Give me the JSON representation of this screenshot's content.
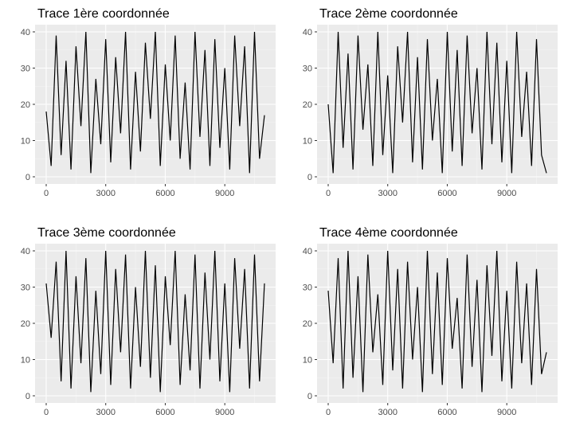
{
  "figure": {
    "background": "#ffffff",
    "panel_background": "#ebebeb",
    "grid_major_color": "#ffffff",
    "grid_minor_color": "#f5f5f5",
    "line_color": "#000000",
    "tick_color": "#333333",
    "tick_label_color": "#4d4d4d"
  },
  "chart_data": [
    {
      "type": "line",
      "title": "Trace 1ère coordonnée",
      "xlabel": "",
      "ylabel": "",
      "xlim": [
        0,
        11000
      ],
      "ylim": [
        0,
        40
      ],
      "x_ticks": [
        "0",
        "3000",
        "6000",
        "9000"
      ],
      "y_ticks": [
        "0",
        "10",
        "20",
        "30",
        "40"
      ],
      "grid": true,
      "series": [
        {
          "x": [
            0,
            250,
            500,
            750,
            1000,
            1250,
            1500,
            1750,
            2000,
            2250,
            2500,
            2750,
            3000,
            3250,
            3500,
            3750,
            4000,
            4250,
            4500,
            4750,
            5000,
            5250,
            5500,
            5750,
            6000,
            6250,
            6500,
            6750,
            7000,
            7250,
            7500,
            7750,
            8000,
            8250,
            8500,
            8750,
            9000,
            9250,
            9500,
            9750,
            10000,
            10250,
            10500,
            10750,
            11000
          ],
          "y": [
            18,
            3,
            39,
            6,
            32,
            2,
            36,
            14,
            40,
            1,
            27,
            9,
            38,
            4,
            33,
            12,
            40,
            2,
            29,
            7,
            37,
            16,
            40,
            3,
            31,
            10,
            39,
            5,
            26,
            2,
            40,
            11,
            35,
            3,
            38,
            8,
            30,
            2,
            39,
            14,
            36,
            1,
            40,
            5,
            17
          ]
        }
      ]
    },
    {
      "type": "line",
      "title": "Trace 2ème coordonnée",
      "xlabel": "",
      "ylabel": "",
      "xlim": [
        0,
        11000
      ],
      "ylim": [
        0,
        40
      ],
      "x_ticks": [
        "0",
        "3000",
        "6000",
        "9000"
      ],
      "y_ticks": [
        "0",
        "10",
        "20",
        "30",
        "40"
      ],
      "grid": true,
      "series": [
        {
          "x": [
            0,
            250,
            500,
            750,
            1000,
            1250,
            1500,
            1750,
            2000,
            2250,
            2500,
            2750,
            3000,
            3250,
            3500,
            3750,
            4000,
            4250,
            4500,
            4750,
            5000,
            5250,
            5500,
            5750,
            6000,
            6250,
            6500,
            6750,
            7000,
            7250,
            7500,
            7750,
            8000,
            8250,
            8500,
            8750,
            9000,
            9250,
            9500,
            9750,
            10000,
            10250,
            10500,
            10750,
            11000
          ],
          "y": [
            20,
            1,
            40,
            8,
            34,
            2,
            39,
            13,
            31,
            3,
            40,
            6,
            28,
            1,
            36,
            15,
            40,
            4,
            33,
            2,
            38,
            10,
            27,
            1,
            40,
            7,
            35,
            3,
            39,
            12,
            30,
            2,
            40,
            9,
            37,
            4,
            32,
            1,
            40,
            11,
            29,
            3,
            38,
            6,
            1
          ]
        }
      ]
    },
    {
      "type": "line",
      "title": "Trace 3ème coordonnée",
      "xlabel": "",
      "ylabel": "",
      "xlim": [
        0,
        11000
      ],
      "ylim": [
        0,
        40
      ],
      "x_ticks": [
        "0",
        "3000",
        "6000",
        "9000"
      ],
      "y_ticks": [
        "0",
        "10",
        "20",
        "30",
        "40"
      ],
      "grid": true,
      "series": [
        {
          "x": [
            0,
            250,
            500,
            750,
            1000,
            1250,
            1500,
            1750,
            2000,
            2250,
            2500,
            2750,
            3000,
            3250,
            3500,
            3750,
            4000,
            4250,
            4500,
            4750,
            5000,
            5250,
            5500,
            5750,
            6000,
            6250,
            6500,
            6750,
            7000,
            7250,
            7500,
            7750,
            8000,
            8250,
            8500,
            8750,
            9000,
            9250,
            9500,
            9750,
            10000,
            10250,
            10500,
            10750,
            11000
          ],
          "y": [
            31,
            16,
            37,
            4,
            40,
            2,
            33,
            9,
            38,
            1,
            29,
            6,
            40,
            3,
            35,
            12,
            39,
            2,
            30,
            8,
            40,
            5,
            36,
            1,
            33,
            14,
            40,
            3,
            28,
            7,
            39,
            2,
            34,
            10,
            40,
            4,
            31,
            1,
            38,
            13,
            35,
            2,
            39,
            4,
            31
          ]
        }
      ]
    },
    {
      "type": "line",
      "title": "Trace 4ème coordonnée",
      "xlabel": "",
      "ylabel": "",
      "xlim": [
        0,
        11000
      ],
      "ylim": [
        0,
        40
      ],
      "x_ticks": [
        "0",
        "3000",
        "6000",
        "9000"
      ],
      "y_ticks": [
        "0",
        "10",
        "20",
        "30",
        "40"
      ],
      "grid": true,
      "series": [
        {
          "x": [
            0,
            250,
            500,
            750,
            1000,
            1250,
            1500,
            1750,
            2000,
            2250,
            2500,
            2750,
            3000,
            3250,
            3500,
            3750,
            4000,
            4250,
            4500,
            4750,
            5000,
            5250,
            5500,
            5750,
            6000,
            6250,
            6500,
            6750,
            7000,
            7250,
            7500,
            7750,
            8000,
            8250,
            8500,
            8750,
            9000,
            9250,
            9500,
            9750,
            10000,
            10250,
            10500,
            10750,
            11000
          ],
          "y": [
            29,
            9,
            38,
            2,
            40,
            5,
            33,
            1,
            39,
            12,
            28,
            3,
            40,
            7,
            35,
            2,
            37,
            10,
            30,
            1,
            40,
            6,
            34,
            3,
            38,
            13,
            27,
            2,
            39,
            8,
            32,
            1,
            36,
            11,
            40,
            4,
            29,
            2,
            37,
            9,
            31,
            3,
            35,
            6,
            12
          ]
        }
      ]
    }
  ]
}
